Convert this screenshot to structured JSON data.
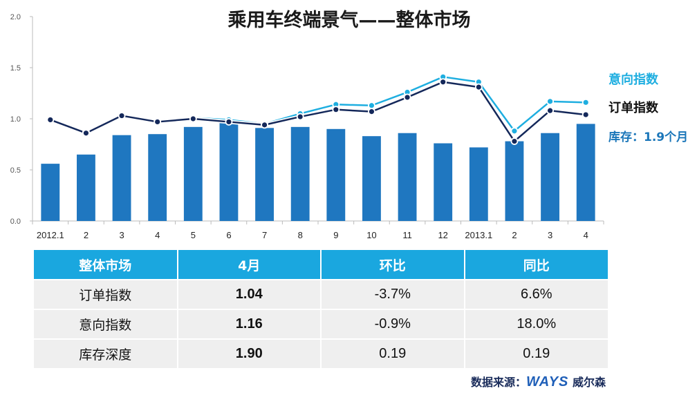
{
  "chart_data": {
    "type": "bar",
    "title": "乘用车终端景气——整体市场",
    "categories": [
      "2012.1",
      "2",
      "3",
      "4",
      "5",
      "6",
      "7",
      "8",
      "9",
      "10",
      "11",
      "12",
      "2013.1",
      "2",
      "3",
      "4"
    ],
    "series": [
      {
        "name": "库存：1.9个月",
        "kind": "bar",
        "color": "#1f77c0",
        "values": [
          0.56,
          0.65,
          0.84,
          0.85,
          0.92,
          0.97,
          0.91,
          0.92,
          0.9,
          0.83,
          0.86,
          0.76,
          0.72,
          0.78,
          0.86,
          0.95
        ]
      },
      {
        "name": "意向指数",
        "kind": "line",
        "color": "#1eaee0",
        "values": [
          1.0,
          0.87,
          1.04,
          0.98,
          1.01,
          0.99,
          0.95,
          1.05,
          1.14,
          1.13,
          1.26,
          1.41,
          1.36,
          0.88,
          1.17,
          1.16
        ]
      },
      {
        "name": "订单指数",
        "kind": "line",
        "color": "#14285a",
        "values": [
          0.99,
          0.86,
          1.03,
          0.97,
          1.0,
          0.97,
          0.94,
          1.02,
          1.09,
          1.07,
          1.21,
          1.36,
          1.31,
          0.78,
          1.08,
          1.04
        ]
      }
    ],
    "yticks": [
      "0.0",
      "0.5",
      "1.0",
      "1.5",
      "2.0"
    ],
    "ylim": [
      0,
      2
    ],
    "grid": false,
    "legend": "right"
  },
  "table": {
    "headers": [
      "整体市场",
      "4月",
      "环比",
      "同比"
    ],
    "rows": [
      {
        "label": "订单指数",
        "value": "1.04",
        "mom": "-3.7%",
        "yoy": "6.6%"
      },
      {
        "label": "意向指数",
        "value": "1.16",
        "mom": "-0.9%",
        "yoy": "18.0%"
      },
      {
        "label": "库存深度",
        "value": "1.90",
        "mom": "0.19",
        "yoy": "0.19"
      }
    ]
  },
  "source": {
    "label": "数据来源：",
    "logo": "WAYS",
    "company": "威尔森"
  }
}
